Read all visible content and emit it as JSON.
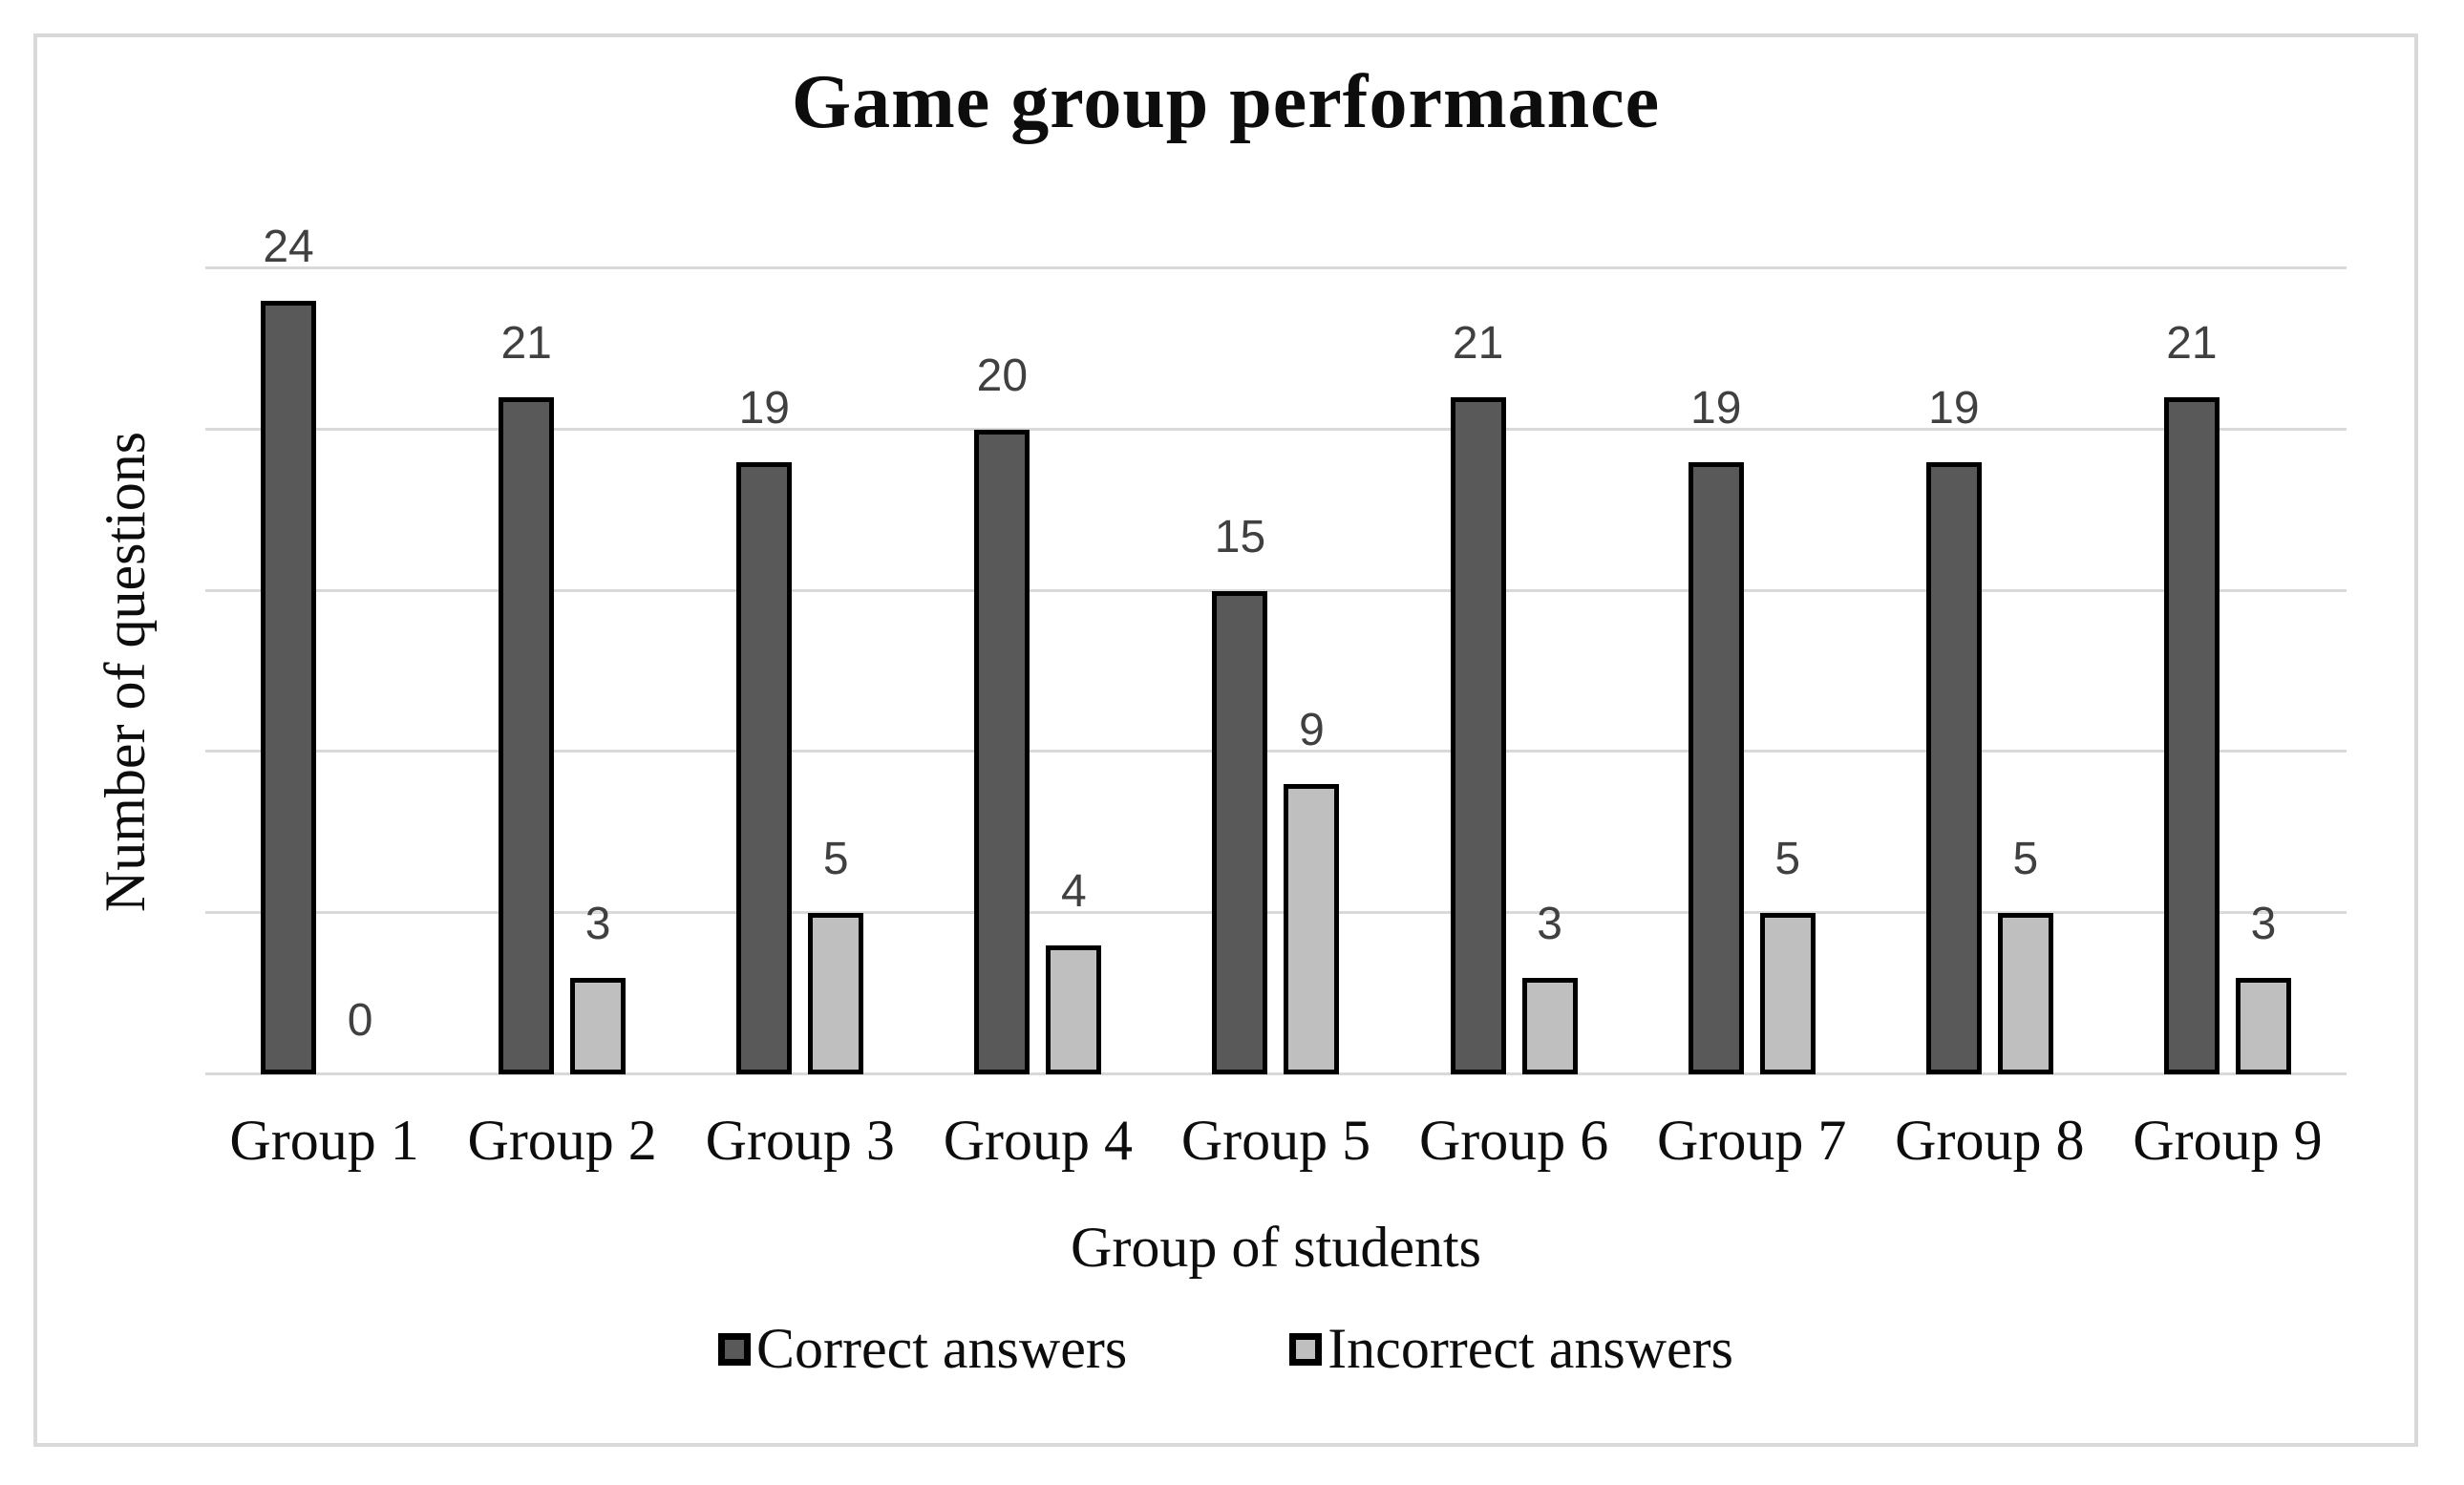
{
  "chart_data": {
    "type": "bar",
    "title": "Game group performance",
    "xlabel": "Group of students",
    "ylabel": "Number of questions",
    "categories": [
      "Group 1",
      "Group 2",
      "Group 3",
      "Group 4",
      "Group 5",
      "Group 6",
      "Group 7",
      "Group 8",
      "Group 9"
    ],
    "series": [
      {
        "name": "Correct answers",
        "values": [
          24,
          21,
          19,
          20,
          15,
          21,
          19,
          19,
          21
        ],
        "color": "#595959"
      },
      {
        "name": "Incorrect answers",
        "values": [
          0,
          3,
          5,
          4,
          9,
          3,
          5,
          5,
          3
        ],
        "color": "#bfbfbf"
      }
    ],
    "ylim": [
      0,
      25
    ],
    "gridline_values": [
      0,
      5,
      10,
      15,
      20,
      25
    ],
    "grid": true,
    "data_labels": true,
    "legend_position": "bottom"
  },
  "colors": {
    "bar_border": "#000000",
    "gridline": "#d9d9d9",
    "frame_border": "#d9d9d9",
    "data_label": "#404040",
    "text": "#0d0d0d",
    "background": "#ffffff"
  }
}
